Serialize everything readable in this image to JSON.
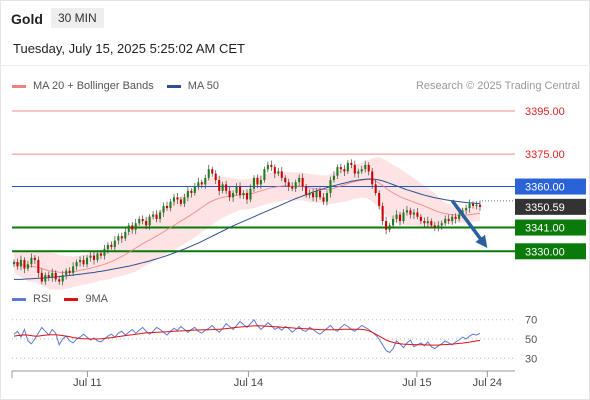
{
  "header": {
    "title": "Gold",
    "timeframe": "30 MIN"
  },
  "datetime": "Tuesday, July 15, 2025 5:25:02 AM CET",
  "legend": {
    "items": [
      {
        "label": "MA 20 + Bollinger Bands",
        "color": "#f08080"
      },
      {
        "label": "MA 50",
        "color": "#2f4f8f"
      }
    ],
    "copyright": "Research © 2025 Trading Central"
  },
  "chart_data": [
    {
      "type": "candlestick",
      "y_range": [
        3313,
        3401
      ],
      "x_range": [
        0,
        100
      ],
      "x_ticks": [
        {
          "pos": 15,
          "label": "Jul 11"
        },
        {
          "pos": 47,
          "label": "Jul 14"
        },
        {
          "pos": 80.5,
          "label": "Jul 15"
        },
        {
          "pos": 94.5,
          "label": "Jul 24"
        }
      ],
      "levels": [
        {
          "value": 3395.0,
          "label": "3395.00",
          "style": "resistance-light"
        },
        {
          "value": 3375.0,
          "label": "3375.00",
          "style": "resistance-light"
        },
        {
          "value": 3360.0,
          "label": "3360.00",
          "style": "pivot"
        },
        {
          "value": 3341.0,
          "label": "3341.00",
          "style": "support"
        },
        {
          "value": 3330.0,
          "label": "3330.00",
          "style": "support"
        }
      ],
      "last_price": {
        "value": 3350.59,
        "label": "3350.59"
      },
      "forecast_arrow": {
        "from_x": 87.5,
        "from_y": 3353.5,
        "to_x": 94.5,
        "to_y": 3331.5
      },
      "up_color": "#1a7f1a",
      "down_color": "#cc0000",
      "close": [
        3325,
        3323,
        3326,
        3322,
        3324,
        3327,
        3326,
        3320,
        3316,
        3319,
        3318,
        3320,
        3317,
        3316,
        3319,
        3321,
        3320,
        3323,
        3325,
        3326,
        3324,
        3327,
        3328,
        3326,
        3329,
        3328,
        3331,
        3333,
        3332,
        3335,
        3337,
        3336,
        3339,
        3342,
        3340,
        3343,
        3345,
        3344,
        3342,
        3346,
        3347,
        3345,
        3348,
        3351,
        3350,
        3353,
        3355,
        3354,
        3352,
        3355,
        3358,
        3357,
        3360,
        3362,
        3361,
        3364,
        3368,
        3366,
        3363,
        3358,
        3361,
        3358,
        3355,
        3357,
        3360,
        3356,
        3357,
        3354,
        3359,
        3364,
        3361,
        3363,
        3368,
        3370,
        3369,
        3366,
        3367,
        3364,
        3362,
        3360,
        3359,
        3362,
        3364,
        3360,
        3356,
        3357,
        3355,
        3358,
        3355,
        3353,
        3357,
        3363,
        3365,
        3369,
        3368,
        3367,
        3371,
        3370,
        3366,
        3367,
        3368,
        3370,
        3367,
        3361,
        3357,
        3351,
        3344,
        3340,
        3342,
        3345,
        3347,
        3344,
        3348,
        3349,
        3347,
        3348,
        3346,
        3344,
        3343,
        3344,
        3342,
        3341,
        3342,
        3343,
        3345,
        3344,
        3346,
        3345,
        3347,
        3349,
        3350,
        3352,
        3351,
        3351.5,
        3350.59
      ],
      "ma20": [
        3325,
        3324.5,
        3324,
        3323.5,
        3323,
        3323,
        3322.8,
        3322.5,
        3322,
        3321.5,
        3321,
        3320.8,
        3320.6,
        3320.3,
        3320.2,
        3320.2,
        3320.3,
        3320.5,
        3320.8,
        3321.2,
        3321.5,
        3321.8,
        3322.2,
        3322.6,
        3323,
        3323.5,
        3324,
        3324.6,
        3325.2,
        3326,
        3326.8,
        3327.6,
        3328.5,
        3329.5,
        3330.5,
        3331.5,
        3332.5,
        3333.5,
        3334.4,
        3335.3,
        3336.2,
        3337.1,
        3338,
        3339,
        3340,
        3341,
        3342,
        3343,
        3344,
        3345,
        3346,
        3347,
        3348,
        3349.2,
        3350.3,
        3351.4,
        3352.5,
        3353.3,
        3354,
        3354.6,
        3355,
        3355.3,
        3355.6,
        3355.8,
        3356,
        3356.2,
        3356.3,
        3356.4,
        3356.6,
        3357,
        3357.5,
        3358,
        3358.5,
        3359,
        3359.4,
        3359.7,
        3360,
        3360.2,
        3360.3,
        3360.2,
        3360,
        3360,
        3360.1,
        3360,
        3359.6,
        3359.3,
        3359.1,
        3359,
        3358.8,
        3358.6,
        3358.6,
        3358.8,
        3359.2,
        3359.8,
        3360.3,
        3360.8,
        3361.4,
        3361.9,
        3362.3,
        3362.6,
        3362.9,
        3363.2,
        3363.3,
        3363,
        3362.4,
        3361.6,
        3360.5,
        3359.2,
        3358,
        3357,
        3356.2,
        3355.3,
        3354.6,
        3354,
        3353.4,
        3352.8,
        3352.2,
        3351.6,
        3350.9,
        3350.3,
        3349.6,
        3348.9,
        3348.3,
        3347.8,
        3347.5,
        3347.2,
        3347,
        3346.8,
        3346.7,
        3346.7,
        3346.8,
        3347,
        3347.2,
        3347.4,
        3347.6
      ],
      "bb_width": [
        5,
        5.5,
        6,
        6.5,
        7,
        7,
        7,
        7.5,
        8,
        8,
        8.5,
        8.5,
        8.5,
        8,
        8,
        7.5,
        7.5,
        7,
        7,
        7,
        7,
        7,
        7,
        7,
        7,
        7,
        7.5,
        7.5,
        8,
        8,
        8.5,
        9,
        9.5,
        10,
        10.5,
        11,
        11,
        11,
        11,
        11,
        11,
        11,
        11,
        11,
        11,
        11,
        11.5,
        11.5,
        11.5,
        11.5,
        11.5,
        11.5,
        11.5,
        11.5,
        11.5,
        11.5,
        11.5,
        11,
        10.5,
        10,
        9.5,
        9,
        8.5,
        8,
        7.5,
        7,
        7,
        7,
        7,
        7,
        7,
        7,
        7,
        7,
        7,
        7,
        7,
        7,
        6.5,
        6.5,
        6.5,
        6.5,
        6.5,
        6.5,
        6.5,
        6.5,
        6.5,
        6.5,
        6.5,
        6.5,
        6.5,
        7,
        7,
        7.5,
        7.5,
        8,
        8,
        8,
        8,
        8,
        8,
        8.5,
        9,
        10,
        11,
        12,
        12.5,
        13,
        13,
        13,
        13,
        13,
        12.5,
        12,
        11.5,
        11,
        10.5,
        10,
        9.5,
        9,
        8.5,
        8,
        7,
        6,
        5,
        4.5,
        4,
        3.5,
        3.5,
        3.5,
        3.5,
        3.5,
        3.5,
        3.5,
        3.5
      ],
      "ma50": [
        3317,
        3317,
        3317,
        3317.1,
        3317.2,
        3317.3,
        3317.4,
        3317.5,
        3317.6,
        3317.7,
        3317.8,
        3318,
        3318.1,
        3318.3,
        3318.4,
        3318.6,
        3318.8,
        3319,
        3319.2,
        3319.4,
        3319.6,
        3319.8,
        3320,
        3320.2,
        3320.5,
        3320.7,
        3321,
        3321.3,
        3321.6,
        3321.9,
        3322.2,
        3322.5,
        3322.8,
        3323.1,
        3323.5,
        3323.9,
        3324.3,
        3324.7,
        3325.1,
        3325.5,
        3326,
        3326.5,
        3327,
        3327.5,
        3328,
        3328.6,
        3329.2,
        3329.8,
        3330.4,
        3331,
        3331.7,
        3332.4,
        3333.1,
        3333.8,
        3334.6,
        3335.4,
        3336.2,
        3337,
        3337.8,
        3338.6,
        3339.4,
        3340.2,
        3341,
        3341.8,
        3342.5,
        3343.2,
        3343.9,
        3344.6,
        3345.3,
        3346,
        3346.7,
        3347.4,
        3348.1,
        3348.8,
        3349.5,
        3350.2,
        3350.9,
        3351.6,
        3352.3,
        3353,
        3353.7,
        3354.4,
        3355,
        3355.6,
        3356.2,
        3356.8,
        3357.4,
        3358,
        3358.5,
        3359,
        3359.5,
        3360,
        3360.4,
        3360.8,
        3361.2,
        3361.6,
        3362,
        3362.4,
        3362.7,
        3363,
        3363.2,
        3363.4,
        3363.5,
        3363.5,
        3363.3,
        3363,
        3362.6,
        3362.1,
        3361.5,
        3360.9,
        3360.3,
        3359.7,
        3359.1,
        3358.5,
        3358,
        3357.5,
        3357,
        3356.5,
        3356,
        3355.6,
        3355.2,
        3354.8,
        3354.5,
        3354.2,
        3353.9,
        3353.6,
        3353.4,
        3353.2,
        3353,
        3352.8,
        3352.6,
        3352.4,
        3352.3,
        3352.2,
        3352.1
      ]
    },
    {
      "type": "line",
      "legend": [
        {
          "label": "RSI",
          "color": "#5b7bd5"
        },
        {
          "label": "9MA",
          "color": "#dd1111"
        }
      ],
      "y_range": [
        22,
        78
      ],
      "y_ticks": [
        {
          "value": 70,
          "label": "70"
        },
        {
          "value": 50,
          "label": "50"
        },
        {
          "value": 30,
          "label": "30"
        }
      ],
      "rsi": [
        55,
        58,
        52,
        60,
        48,
        45,
        50,
        56,
        62,
        58,
        54,
        60,
        56,
        44,
        50,
        53,
        48,
        46,
        50,
        52,
        55,
        52,
        49,
        51,
        48,
        47,
        50,
        53,
        55,
        52,
        56,
        58,
        54,
        57,
        60,
        56,
        59,
        62,
        58,
        55,
        58,
        62,
        60,
        57,
        54,
        58,
        61,
        59,
        63,
        60,
        57,
        60,
        62,
        58,
        56,
        59,
        61,
        64,
        60,
        57,
        61,
        66,
        63,
        60,
        64,
        68,
        65,
        62,
        66,
        70,
        64,
        60,
        63,
        67,
        64,
        60,
        62,
        59,
        63,
        61,
        57,
        60,
        63,
        59,
        58,
        62,
        60,
        57,
        55,
        58,
        61,
        64,
        60,
        58,
        62,
        65,
        63,
        60,
        58,
        61,
        64,
        62,
        60,
        57,
        54,
        50,
        44,
        38,
        36,
        40,
        48,
        45,
        41,
        46,
        49,
        42,
        44,
        46,
        43,
        47,
        42,
        40,
        43,
        45,
        48,
        46,
        44,
        47,
        49,
        52,
        50,
        53,
        55,
        54,
        56
      ],
      "rsi_ma": [
        53,
        53.5,
        54,
        54.2,
        54,
        53.5,
        53,
        53,
        53.5,
        54,
        54.2,
        54.5,
        54.5,
        54,
        53.5,
        53,
        52.5,
        51.5,
        51,
        50.5,
        50.3,
        50.2,
        50,
        50,
        50.1,
        50.2,
        50.5,
        51,
        51.5,
        52,
        52.5,
        53,
        53.5,
        54,
        54.5,
        55,
        55.5,
        56,
        56.3,
        56.5,
        56.7,
        57,
        57.2,
        57.4,
        57.5,
        57.7,
        58,
        58.2,
        58.4,
        58.6,
        58.8,
        59,
        59.2,
        59.3,
        59.4,
        59.5,
        59.6,
        59.8,
        60,
        60.2,
        60.4,
        60.8,
        61.2,
        61.6,
        62,
        62.4,
        62.8,
        63.1,
        63.4,
        63.6,
        63.7,
        63.6,
        63.4,
        63.2,
        63,
        62.8,
        62.5,
        62.2,
        62,
        61.8,
        61.5,
        61.2,
        61,
        60.8,
        60.6,
        60.4,
        60.2,
        60,
        59.8,
        59.6,
        59.5,
        59.5,
        59.6,
        59.8,
        60,
        60.1,
        60.2,
        60.2,
        60.2,
        60.1,
        60,
        59.5,
        58.5,
        57,
        55,
        53,
        51,
        49,
        47.5,
        46.5,
        45.5,
        45,
        44.7,
        44.5,
        44.3,
        44.2,
        44.1,
        44,
        43.9,
        43.8,
        43.7,
        43.7,
        43.8,
        44,
        44.2,
        44.4,
        44.7,
        45,
        45.4,
        45.8,
        46.3,
        46.8,
        47.4,
        48,
        48.5,
        49,
        49.5
      ]
    }
  ]
}
